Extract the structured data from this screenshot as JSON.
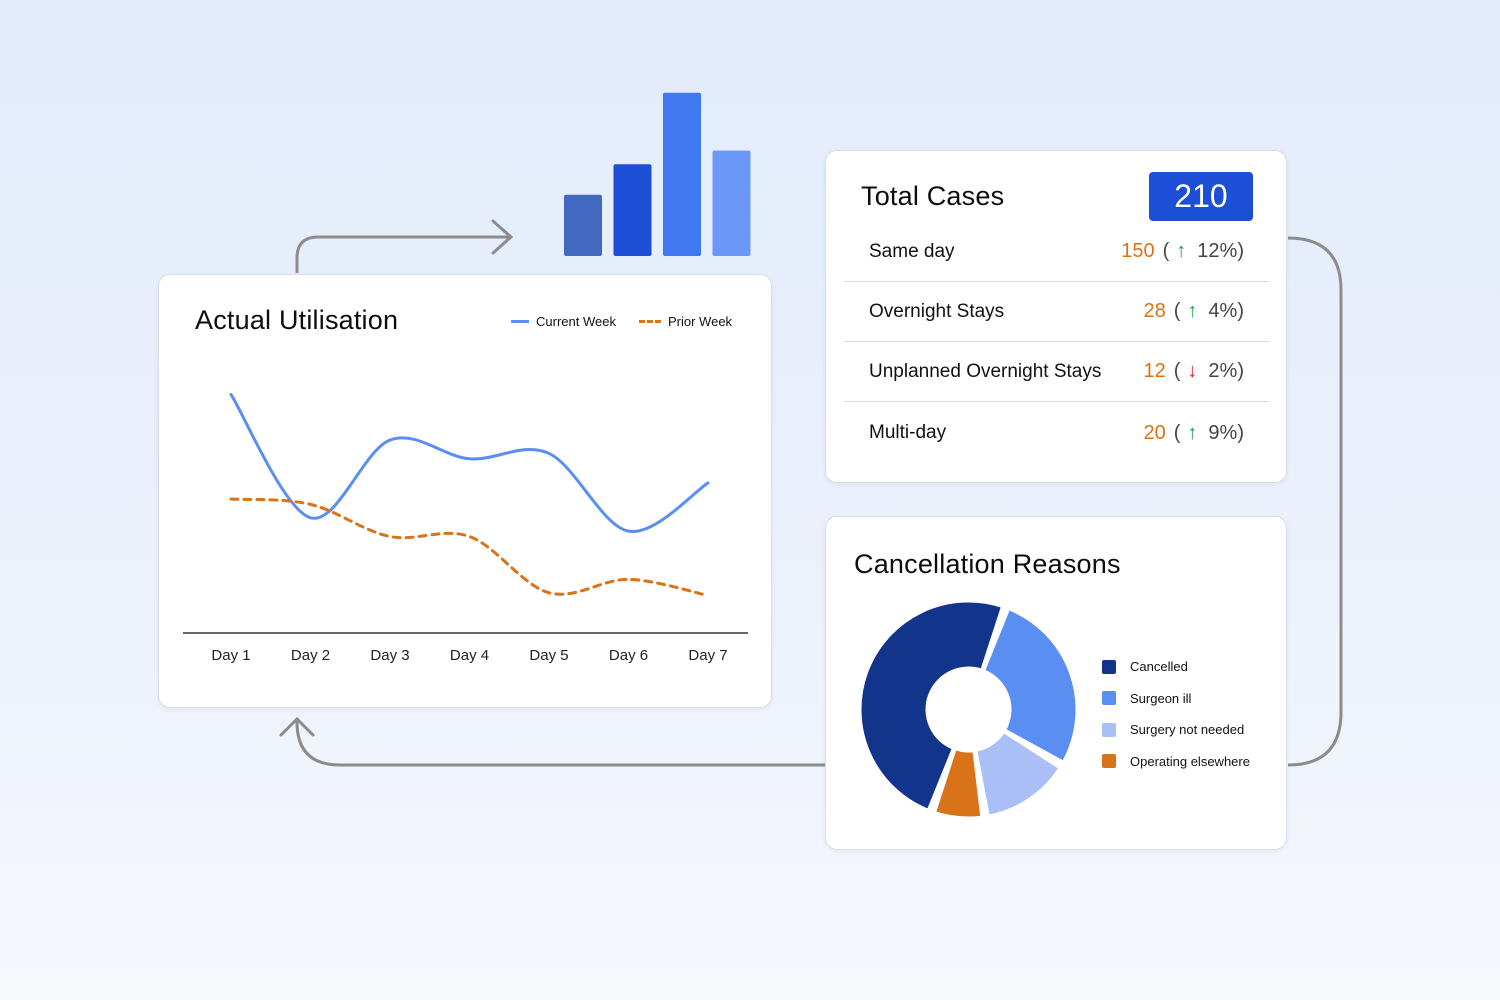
{
  "utilisation": {
    "title": "Actual Utilisation",
    "legend": {
      "current": "Current Week",
      "prior": "Prior Week"
    },
    "colors": {
      "current": "#5b8ef2",
      "prior": "#d9731a"
    }
  },
  "total_cases": {
    "title": "Total Cases",
    "total": "210",
    "rows": [
      {
        "label": "Same day",
        "count": "150",
        "direction": "up",
        "percent": "12%"
      },
      {
        "label": "Overnight Stays",
        "count": "28",
        "direction": "up",
        "percent": "4%"
      },
      {
        "label": "Unplanned Overnight Stays",
        "count": "12",
        "direction": "down",
        "percent": "2%"
      },
      {
        "label": "Multi-day",
        "count": "20",
        "direction": "up",
        "percent": "9%"
      }
    ]
  },
  "cancellation": {
    "title": "Cancellation Reasons"
  },
  "chart_data": [
    {
      "type": "line",
      "title": "Actual Utilisation",
      "categories": [
        "Day 1",
        "Day 2",
        "Day 3",
        "Day 4",
        "Day 5",
        "Day 6",
        "Day 7"
      ],
      "ylim": [
        0,
        100
      ],
      "series": [
        {
          "name": "Current Week",
          "style": "solid",
          "color": "#5b8ef2",
          "values": [
            89,
            43,
            72,
            65,
            67,
            38,
            56
          ]
        },
        {
          "name": "Prior Week",
          "style": "dashed",
          "color": "#d9731a",
          "values": [
            50,
            48,
            36,
            36,
            15,
            20,
            14
          ]
        }
      ],
      "legend_position": "top-right",
      "grid": false
    },
    {
      "type": "pie",
      "title": "Cancellation Reasons",
      "donut": true,
      "labels": [
        "Cancelled",
        "Surgeon ill",
        "Surgery not needed",
        "Operating elsewhere"
      ],
      "values": [
        50,
        28,
        14,
        8
      ],
      "colors": [
        "#12348a",
        "#5b8ef2",
        "#a9bff6",
        "#d9731a"
      ],
      "legend_position": "right"
    },
    {
      "type": "bar",
      "categories": [
        "",
        "",
        "",
        ""
      ],
      "values": [
        36,
        54,
        96,
        62
      ],
      "ylim": [
        0,
        100
      ],
      "colors": [
        "#4368c0",
        "#1c4fd6",
        "#4078f2",
        "#6b97f8"
      ]
    }
  ]
}
